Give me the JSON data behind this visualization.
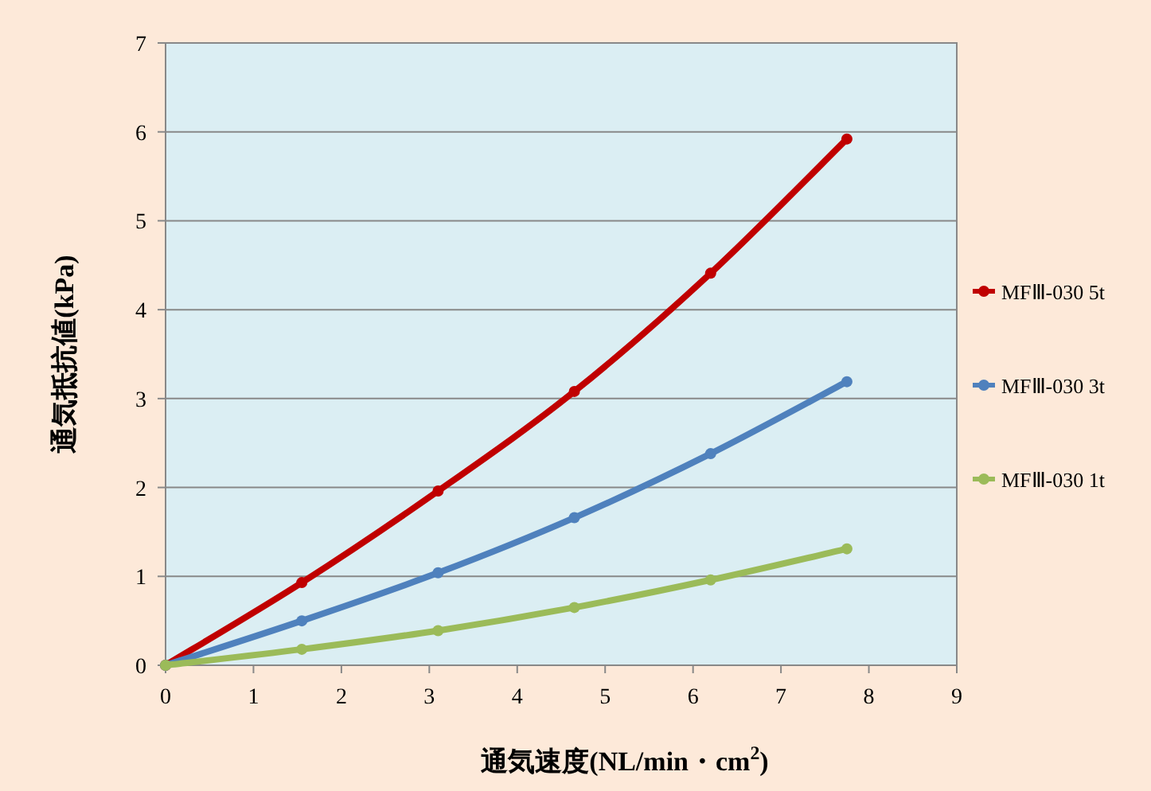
{
  "chart_data": {
    "type": "line",
    "xlabel": "通気速度(NL/min・cm$^{2}$)",
    "ylabel": "通気抵抗値(kPa)",
    "x": [
      0,
      1.55,
      3.1,
      4.65,
      6.2,
      7.75
    ],
    "series": [
      {
        "name": "MFⅢ-030 5t",
        "color": "#c00000",
        "values": [
          0,
          0.93,
          1.96,
          3.08,
          4.41,
          5.92
        ]
      },
      {
        "name": "MFⅢ-030 3t",
        "color": "#4f81bd",
        "values": [
          0,
          0.5,
          1.04,
          1.66,
          2.38,
          3.19
        ]
      },
      {
        "name": "MFⅢ-030 1t",
        "color": "#9bbb59",
        "values": [
          0,
          0.18,
          0.39,
          0.65,
          0.96,
          1.31
        ]
      }
    ],
    "xlim": [
      0,
      9
    ],
    "xticks": [
      0,
      1,
      2,
      3,
      4,
      5,
      6,
      7,
      8,
      9
    ],
    "ylim": [
      0,
      7
    ],
    "yticks": [
      0,
      1,
      2,
      3,
      4,
      5,
      6,
      7
    ],
    "grid": "y",
    "legend": "right",
    "marker": "circle",
    "line_style": "solid"
  }
}
